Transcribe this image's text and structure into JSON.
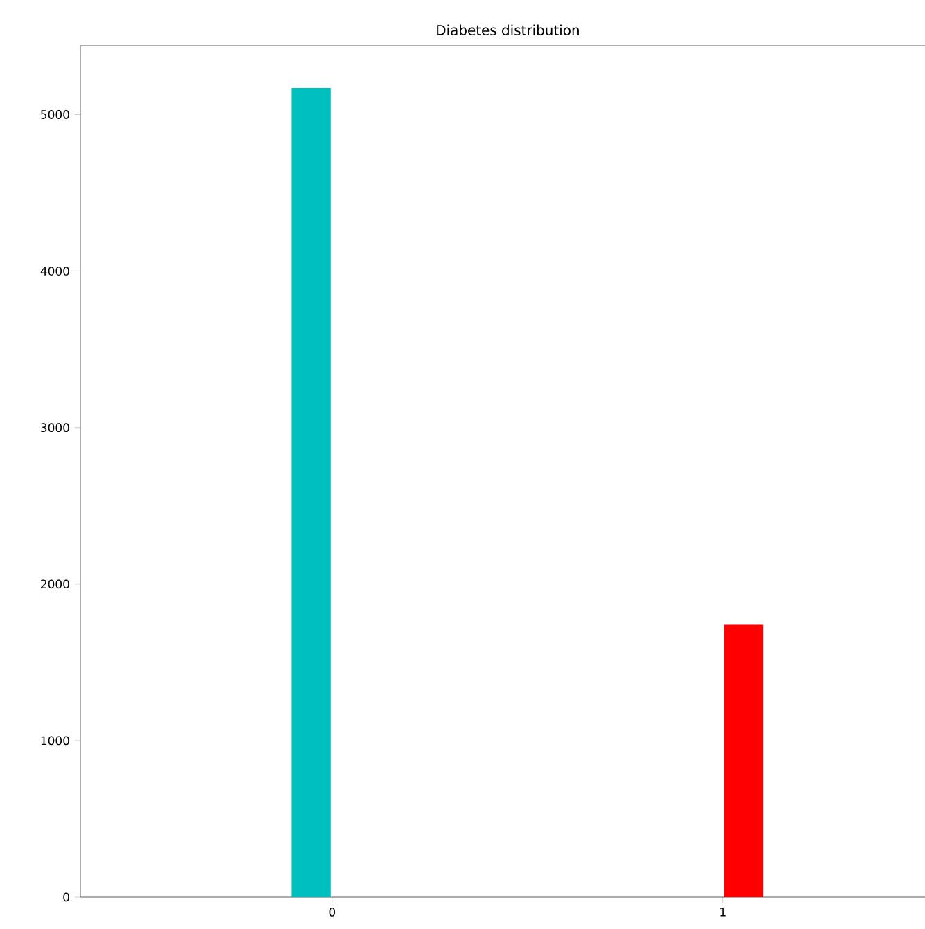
{
  "chart_data": {
    "type": "bar",
    "title": "Diabetes distribution",
    "categories": [
      "0",
      "1"
    ],
    "values": [
      5170,
      1740
    ],
    "colors": [
      "#00bfbf",
      "#ff0000"
    ],
    "ylim": [
      0,
      5440
    ],
    "yticks": [
      0,
      1000,
      2000,
      3000,
      4000,
      5000
    ]
  }
}
